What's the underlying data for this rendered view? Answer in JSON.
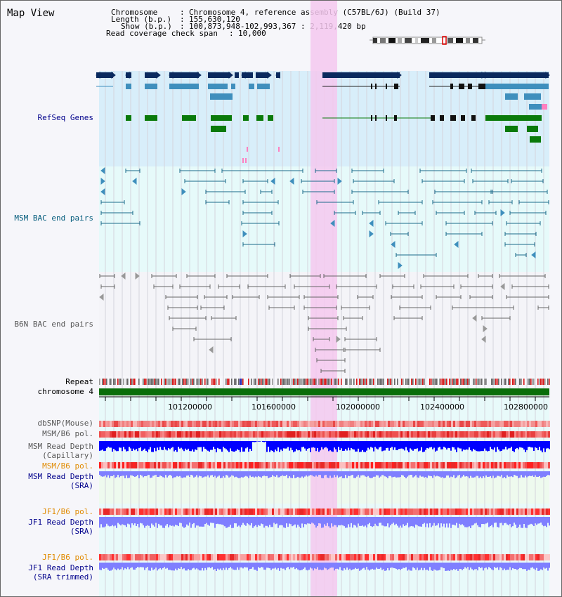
{
  "app": {
    "title": "Map View"
  },
  "info": {
    "chromosome_label": "Chromosome",
    "chromosome_value": "Chromosome 4, reference assembly (C57BL/6J) (Build 37)",
    "length_label": "Length (b.p.)",
    "length_value": "155,630,120",
    "show_label": "Show (b.p.)",
    "show_value": "100,873,948-102,993,367 : 2,119,420 bp",
    "coverage_label": "Read coverage check span",
    "coverage_value": "10,000"
  },
  "tracks": {
    "refseq": "RefSeq Genes",
    "msm_bac": "MSM BAC end pairs",
    "b6n_bac": "B6N BAC end pairs",
    "repeat": "Repeat",
    "chromosome": "chromosome 4",
    "dbsnp": "dbSNP(Mouse)",
    "msm_b6_pol_1": "MSM/B6 pol.",
    "msm_read_depth_cap_1": "MSM Read Depth",
    "msm_read_depth_cap_2": "(Capillary)",
    "msm_b6_pol_2": "MSM/B6 pol.",
    "msm_read_depth_sra_1": "MSM Read Depth",
    "msm_read_depth_sra_2": "(SRA)",
    "jf1_b6_pol_1": "JF1/B6 pol.",
    "jf1_read_depth_sra_1": "JF1 Read Depth",
    "jf1_read_depth_sra_2": "(SRA)",
    "jf1_b6_pol_2": "JF1/B6 pol.",
    "jf1_read_depth_trim_1": "JF1 Read Depth",
    "jf1_read_depth_trim_2": "(SRA trimmed)"
  },
  "axis": {
    "ticks": [
      "101200000",
      "101600000",
      "102000000",
      "102400000",
      "102800000"
    ]
  },
  "colors": {
    "refseq_bg": "#d8eefa",
    "msm_bg": "#e6fafa",
    "highlight": "#f5c8ee",
    "gene_navy": "#0a2a5e",
    "gene_blue": "#3f8fbd",
    "gene_green": "#0a7a0a",
    "msm_line": "#1a6a8a",
    "b6n_line": "#666666",
    "chrom_green": "#0a6e0a",
    "label_navy": "#00008b",
    "label_orange": "#e08a00",
    "depth_blue": "#0000ff",
    "depth_light": "#7f7fff"
  }
}
